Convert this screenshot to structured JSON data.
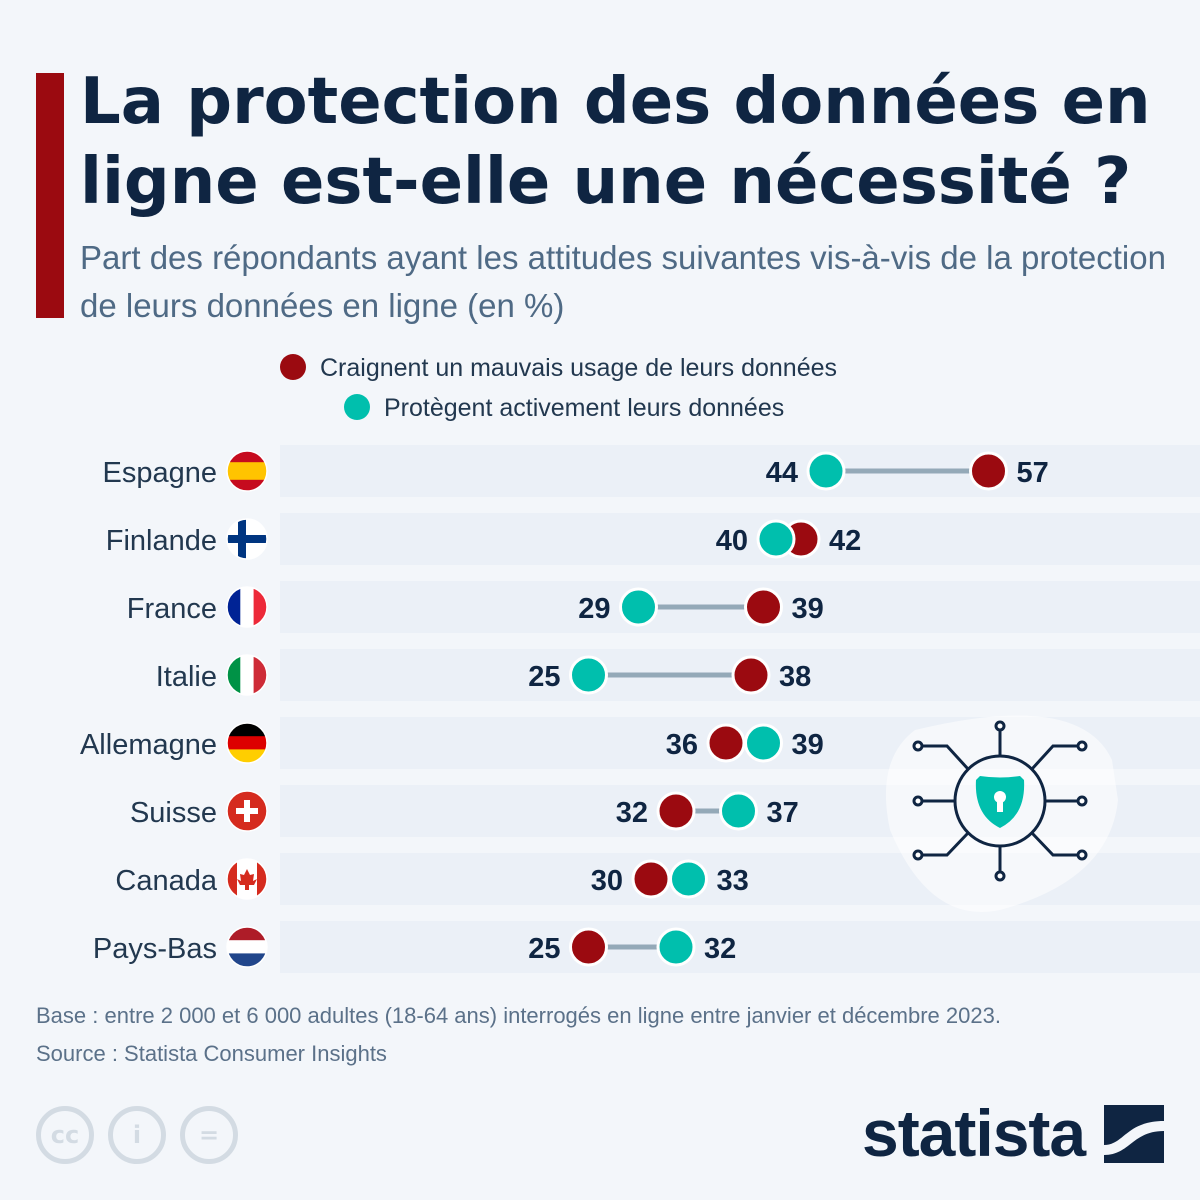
{
  "title": "La protection des données en ligne est-elle une nécessité ?",
  "subtitle": "Part des répondants ayant les attitudes suivantes vis-à-vis de la protection de leurs données en ligne (en %)",
  "colors": {
    "fear": "#9b0a10",
    "protect": "#00bfad",
    "connector": "#94a9b8",
    "band": "#ebf0f7",
    "text": "#0f2542"
  },
  "chart_data": {
    "type": "dumbbell",
    "title": "La protection des données en ligne est-elle une nécessité ?",
    "categories": [
      "Espagne",
      "Finlande",
      "France",
      "Italie",
      "Allemagne",
      "Suisse",
      "Canada",
      "Pays-Bas"
    ],
    "series": [
      {
        "name": "Craignent un mauvais usage de leurs données",
        "color": "#9b0a10",
        "values": [
          57,
          42,
          39,
          38,
          36,
          32,
          30,
          25
        ]
      },
      {
        "name": "Protègent activement leurs données",
        "color": "#00bfad",
        "values": [
          44,
          40,
          29,
          25,
          39,
          37,
          33,
          32
        ]
      }
    ],
    "legend": "top",
    "grid": false
  },
  "flags": [
    "spain",
    "finland",
    "france",
    "italy",
    "germany",
    "switzerland",
    "canada",
    "netherlands"
  ],
  "footer": {
    "base": "Base : entre 2 000 et 6 000 adultes (18-64 ans) interrogés en ligne entre janvier et décembre 2023.",
    "source": "Source : Statista Consumer Insights"
  },
  "license_icons": [
    "cc",
    "i",
    "="
  ],
  "brand": "statista"
}
